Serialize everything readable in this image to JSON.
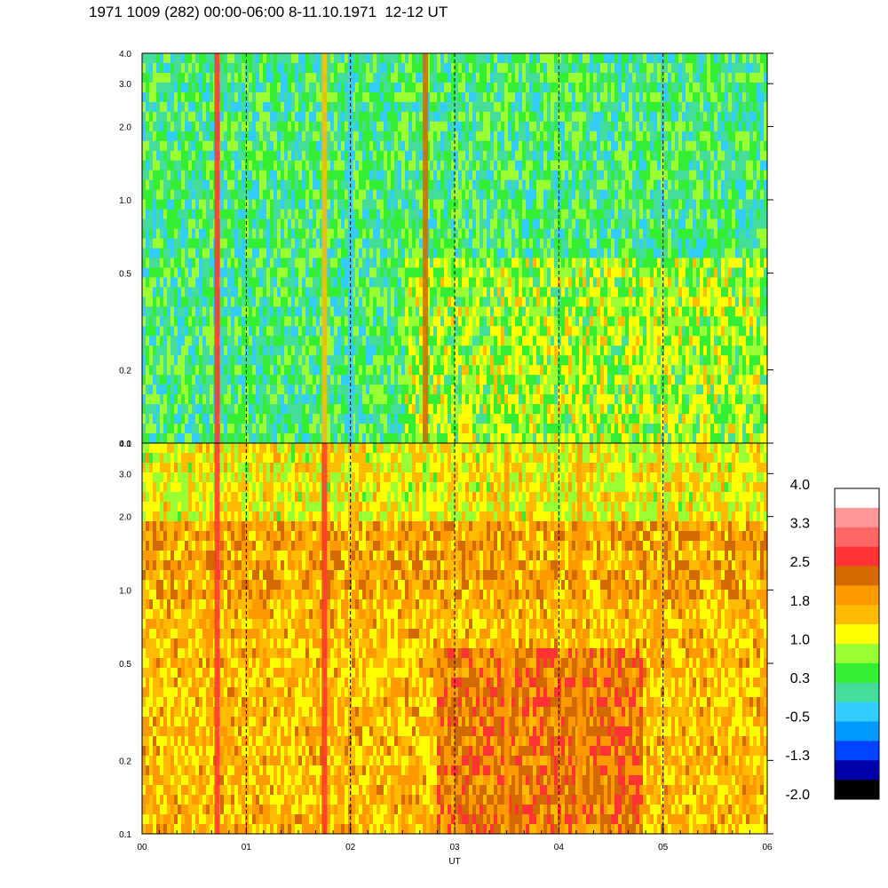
{
  "title": "1971 1009 (282) 00:00-06:00 8-11.10.1971  12-12 UT",
  "chart_data": [
    {
      "type": "heatmap",
      "panel": "upper",
      "x_range": [
        0,
        6
      ],
      "y_scale": "log",
      "y_range": [
        0.1,
        4.0
      ],
      "y_ticks": [
        "0.1",
        "0.2",
        "0.5",
        "1.0",
        "2.0",
        "3.0",
        "4.0"
      ],
      "dominant_level": 0.3,
      "features": [
        {
          "x": 0.72,
          "level": 2.5
        },
        {
          "x": 1.75,
          "level": 1.5
        },
        {
          "x": 2.0,
          "level": -0.5
        },
        {
          "x": 2.72,
          "level": 2.2
        }
      ]
    },
    {
      "type": "heatmap",
      "panel": "lower",
      "x_range": [
        0,
        6
      ],
      "y_scale": "log",
      "y_range": [
        0.1,
        4.0
      ],
      "y_ticks": [
        "0.1",
        "0.2",
        "0.5",
        "1.0",
        "2.0",
        "3.0",
        "4.0"
      ],
      "x_ticks": [
        "00",
        "01",
        "02",
        "03",
        "04",
        "05",
        "06"
      ],
      "xlabel": "UT",
      "dominant_level": 1.4,
      "features": [
        {
          "x": 0.72,
          "level": 2.5
        },
        {
          "x": 1.75,
          "level": 2.6
        },
        {
          "x": 3.5,
          "level": 2.0
        },
        {
          "x": 4.2,
          "level": 2.0
        }
      ]
    }
  ],
  "colorbar": {
    "labels": [
      "4.0",
      "3.3",
      "2.5",
      "1.8",
      "1.0",
      "0.3",
      "-0.5",
      "-1.3",
      "-2.0"
    ],
    "colors": [
      "#ffffff",
      "#ff9999",
      "#ff6666",
      "#ff3333",
      "#d26a00",
      "#ff9900",
      "#ffbb00",
      "#ffff00",
      "#99ff33",
      "#33ee33",
      "#44dd99",
      "#33ccff",
      "#0099ff",
      "#0044ff",
      "#0000aa",
      "#000000"
    ]
  }
}
